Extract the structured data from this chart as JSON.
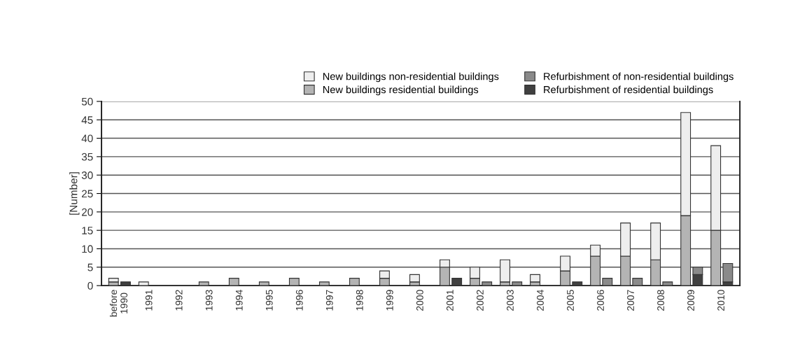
{
  "chart_data": [
    {
      "type": "bar",
      "stacked": true,
      "ylabel": "[Number]",
      "ylim": [
        0,
        50
      ],
      "yticks": [
        0,
        5,
        10,
        15,
        20,
        25,
        30,
        35,
        40,
        45,
        50
      ],
      "categories": [
        "before\n1990",
        "1991",
        "1992",
        "1993",
        "1994",
        "1995",
        "1996",
        "1997",
        "1998",
        "1999",
        "2000",
        "2001",
        "2002",
        "2003",
        "2004",
        "2005",
        "2006",
        "2007",
        "2008",
        "2009",
        "2010"
      ],
      "grid": "y",
      "legend": "top",
      "series": [
        {
          "name": "New buildings residential buildings",
          "color": "#b4b4b4",
          "values": [
            1,
            null,
            null,
            1,
            2,
            1,
            2,
            1,
            2,
            2,
            1,
            5,
            2,
            1,
            1,
            4,
            8,
            8,
            7,
            19,
            15
          ]
        },
        {
          "name": "New buildings non-residential buildings",
          "color": "#eeeeee",
          "values": [
            1,
            1,
            null,
            null,
            null,
            null,
            null,
            null,
            null,
            2,
            2,
            2,
            3,
            6,
            2,
            4,
            3,
            9,
            10,
            28,
            23
          ]
        }
      ]
    },
    {
      "type": "bar",
      "stacked": true,
      "ylim": [
        0,
        50
      ],
      "categories": [
        null,
        null,
        null,
        null,
        null,
        null,
        null,
        null,
        null,
        null,
        null,
        null,
        null,
        null,
        null,
        null,
        null,
        null,
        null,
        null,
        null
      ],
      "legend": "top right",
      "series": [
        {
          "name": "Refurbishment of residential buildings",
          "color": "#404040",
          "values": [
            1,
            null,
            null,
            null,
            null,
            null,
            null,
            null,
            null,
            null,
            null,
            2,
            null,
            null,
            null,
            1,
            null,
            null,
            null,
            3,
            1
          ]
        },
        {
          "name": "Refurbishment of non-residential buildings",
          "color": "#8a8a8a",
          "values": [
            null,
            null,
            null,
            null,
            null,
            null,
            null,
            null,
            null,
            null,
            null,
            null,
            1,
            1,
            null,
            null,
            2,
            2,
            1,
            2,
            5
          ]
        }
      ]
    }
  ]
}
